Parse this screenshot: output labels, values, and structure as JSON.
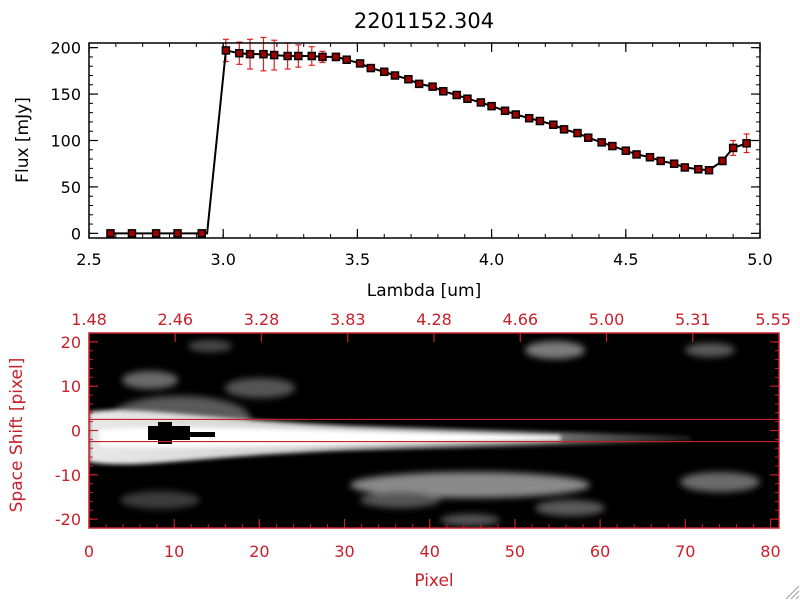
{
  "chart_data": [
    {
      "type": "line",
      "title": "2201152.304",
      "xlabel": "Lambda [um]",
      "ylabel": "Flux [mJy]",
      "xlim": [
        2.5,
        5.0
      ],
      "ylim": [
        -5,
        205
      ],
      "xticks": [
        "2.5",
        "3.0",
        "3.5",
        "4.0",
        "4.5",
        "5.0"
      ],
      "yticks": [
        "0",
        "50",
        "100",
        "150",
        "200"
      ],
      "series": [
        {
          "x": [
            2.58,
            2.66,
            2.75,
            2.83,
            2.92,
            2.94,
            3.01,
            3.06,
            3.1,
            3.15,
            3.19,
            3.24,
            3.28,
            3.33,
            3.37,
            3.42,
            3.46,
            3.51,
            3.55,
            3.6,
            3.64,
            3.69,
            3.73,
            3.78,
            3.82,
            3.87,
            3.91,
            3.96,
            4.0,
            4.05,
            4.09,
            4.14,
            4.18,
            4.23,
            4.27,
            4.32,
            4.36,
            4.41,
            4.45,
            4.5,
            4.54,
            4.59,
            4.63,
            4.68,
            4.72,
            4.77,
            4.81,
            4.86,
            4.9,
            4.95
          ],
          "y": [
            0,
            0,
            0,
            0,
            0,
            0,
            197,
            194,
            193,
            193,
            192,
            191,
            191,
            191,
            190,
            190,
            187,
            183,
            178,
            174,
            170,
            166,
            161,
            158,
            153,
            149,
            145,
            141,
            137,
            132,
            128,
            124,
            121,
            117,
            112,
            108,
            103,
            98,
            94,
            89,
            85,
            82,
            78,
            75,
            71,
            69,
            68,
            78,
            92,
            97
          ],
          "yerr": [
            0,
            0,
            0,
            0,
            0,
            0,
            12,
            12,
            16,
            18,
            16,
            14,
            12,
            10,
            6,
            4,
            3,
            3,
            2,
            2,
            2,
            2,
            2,
            2,
            2,
            2,
            2,
            2,
            2,
            2,
            2,
            2,
            2,
            2,
            2,
            2,
            2,
            2,
            2,
            2,
            2,
            2,
            2,
            2,
            2,
            2,
            2,
            4,
            8,
            10
          ],
          "color": "#000000",
          "marker_color": "#a00000",
          "errorbar_color": "#e02020"
        }
      ]
    },
    {
      "type": "heatmap",
      "xlabel": "Pixel",
      "ylabel": "Space Shift [pixel]",
      "xlim": [
        0,
        81
      ],
      "ylim": [
        -22,
        22
      ],
      "xticks": [
        "0",
        "10",
        "20",
        "30",
        "40",
        "50",
        "60",
        "70",
        "80"
      ],
      "yticks": [
        "-20",
        "-10",
        "0",
        "10",
        "20"
      ],
      "top_axis_ticks": [
        "1.48",
        "2.46",
        "3.28",
        "3.83",
        "4.28",
        "4.66",
        "5.00",
        "5.31",
        "5.55"
      ],
      "extraction_window": [
        -2.5,
        2.5
      ],
      "colormap": "grayscale",
      "frame_color": "#c8202a"
    }
  ]
}
